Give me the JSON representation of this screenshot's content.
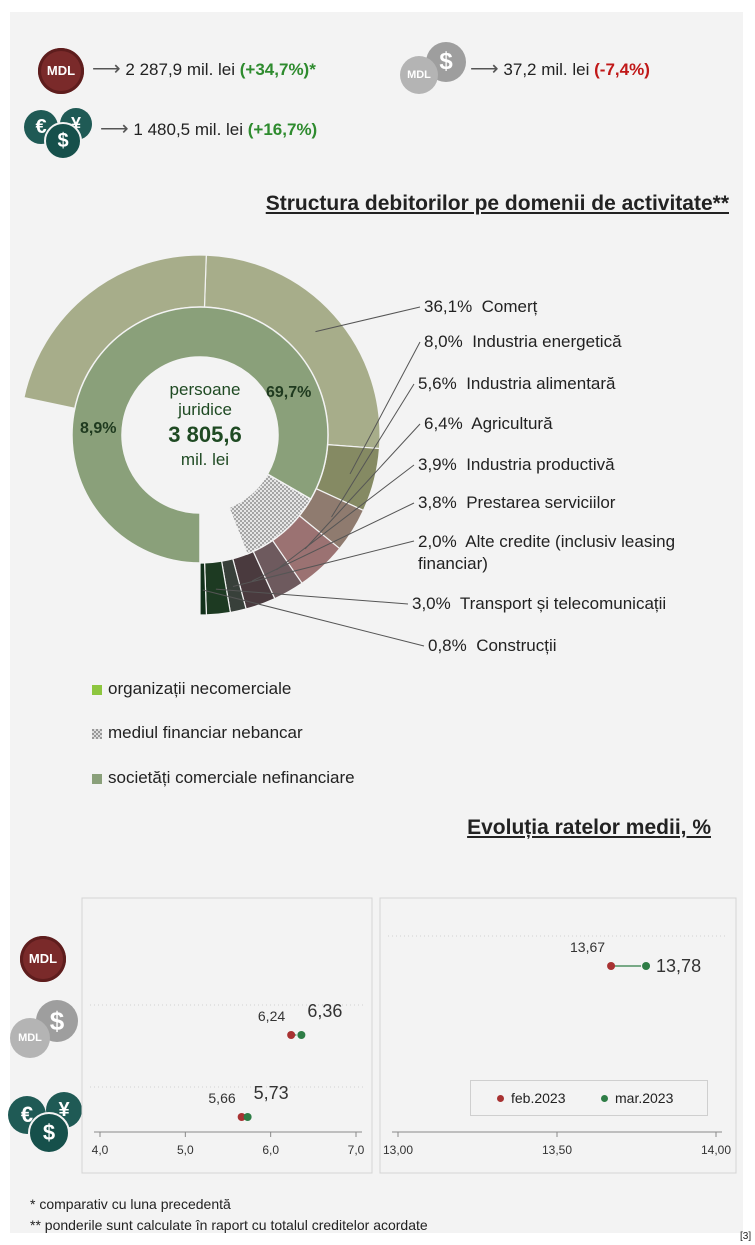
{
  "totals": {
    "mdl": {
      "badge": "MDL",
      "value": "2 287,9 mil. lei",
      "change": "(+34,7%)*"
    },
    "mdl_fx": {
      "badge": "MDL",
      "value": "37,2 mil. lei",
      "change": "(-7,4%)"
    },
    "fx": {
      "value": "1 480,5 mil. lei",
      "change": "(+16,7%)"
    }
  },
  "structure": {
    "title": "Structura debitorilor pe domenii de activitate**",
    "center": {
      "line1": "persoane",
      "line2": "juridice",
      "value": "3 805,6",
      "unit": "mil. lei"
    },
    "inner_labels": {
      "comercial": "69,7%",
      "financiar": "8,9%"
    },
    "legend": [
      {
        "label": "organizații necomerciale",
        "color": "#8dc63f"
      },
      {
        "label": "mediul financiar nebancar",
        "color": "#9a9a9a"
      },
      {
        "label": "societăți comerciale nefinanciare",
        "color": "#8aa07a"
      }
    ]
  },
  "chart_data": [
    {
      "type": "pie",
      "title": "Structura debitorilor pe domenii de activitate**",
      "center_label": "persoane juridice 3 805,6 mil. lei",
      "inner_ring": [
        {
          "label": "societăți comerciale nefinanciare",
          "value": 69.7,
          "color": "#8aa07a"
        },
        {
          "label": "mediul financiar nebancar",
          "value": 8.9,
          "color": "#9a9a9a"
        }
      ],
      "outer_ring": [
        {
          "label": "Comerț",
          "value": 36.1,
          "display": "36,1%",
          "color": "#a7ad8a"
        },
        {
          "label": "Industria energetică",
          "value": 8.0,
          "display": "8,0%",
          "color": "#858a63"
        },
        {
          "label": "Industria alimentară",
          "value": 5.6,
          "display": "5,6%",
          "color": "#8f7b6f"
        },
        {
          "label": "Agricultură",
          "value": 6.4,
          "display": "6,4%",
          "color": "#9b7272"
        },
        {
          "label": "Industria productivă",
          "value": 3.9,
          "display": "3,9%",
          "color": "#6e5a5e"
        },
        {
          "label": "Prestarea serviciilor",
          "value": 3.8,
          "display": "3,8%",
          "color": "#4a3a3e"
        },
        {
          "label": "Alte credite (inclusiv leasing financiar)",
          "value": 2.0,
          "display": "2,0%",
          "color": "#38403a"
        },
        {
          "label": "Transport și telecomunicații",
          "value": 3.0,
          "display": "3,0%",
          "color": "#1d3a22"
        },
        {
          "label": "Construcții",
          "value": 0.8,
          "display": "0,8%",
          "color": "#12301a"
        }
      ]
    },
    {
      "type": "scatter",
      "title": "Evoluția ratelor medii, %",
      "xlim": [
        4.0,
        7.0
      ],
      "xticks": [
        "4,0",
        "5,0",
        "6,0",
        "7,0"
      ],
      "series": [
        {
          "name": "feb.2023",
          "color": "#a83232",
          "points": [
            {
              "cat": "MDL-FX",
              "x": 6.24,
              "label": "6,24"
            },
            {
              "cat": "FX",
              "x": 5.66,
              "label": "5,66"
            }
          ]
        },
        {
          "name": "mar.2023",
          "color": "#2e7d46",
          "points": [
            {
              "cat": "MDL-FX",
              "x": 6.36,
              "label": "6,36"
            },
            {
              "cat": "FX",
              "x": 5.73,
              "label": "5,73"
            }
          ]
        }
      ]
    },
    {
      "type": "scatter",
      "xlim": [
        13.0,
        14.0
      ],
      "xticks": [
        "13,00",
        "13,50",
        "14,00"
      ],
      "series": [
        {
          "name": "feb.2023",
          "color": "#a83232",
          "points": [
            {
              "cat": "MDL",
              "x": 13.67,
              "label": "13,67"
            }
          ]
        },
        {
          "name": "mar.2023",
          "color": "#2e7d46",
          "points": [
            {
              "cat": "MDL",
              "x": 13.78,
              "label": "13,78"
            }
          ]
        }
      ],
      "legend": [
        "feb.2023",
        "mar.2023"
      ]
    }
  ],
  "rates": {
    "title": "Evoluția ratelor medii, %",
    "badges": {
      "mdl": "MDL",
      "mdl_fx": "MDL"
    }
  },
  "footnotes": {
    "f1": "* comparativ cu luna precedentă",
    "f2": "** ponderile sunt calculate în raport cu totalul creditelor acordate",
    "ref": "[3]"
  },
  "colors": {
    "green_up": "#2e8b2e",
    "red_down": "#c01818",
    "feb": "#a83232",
    "mar": "#2e7d46"
  }
}
